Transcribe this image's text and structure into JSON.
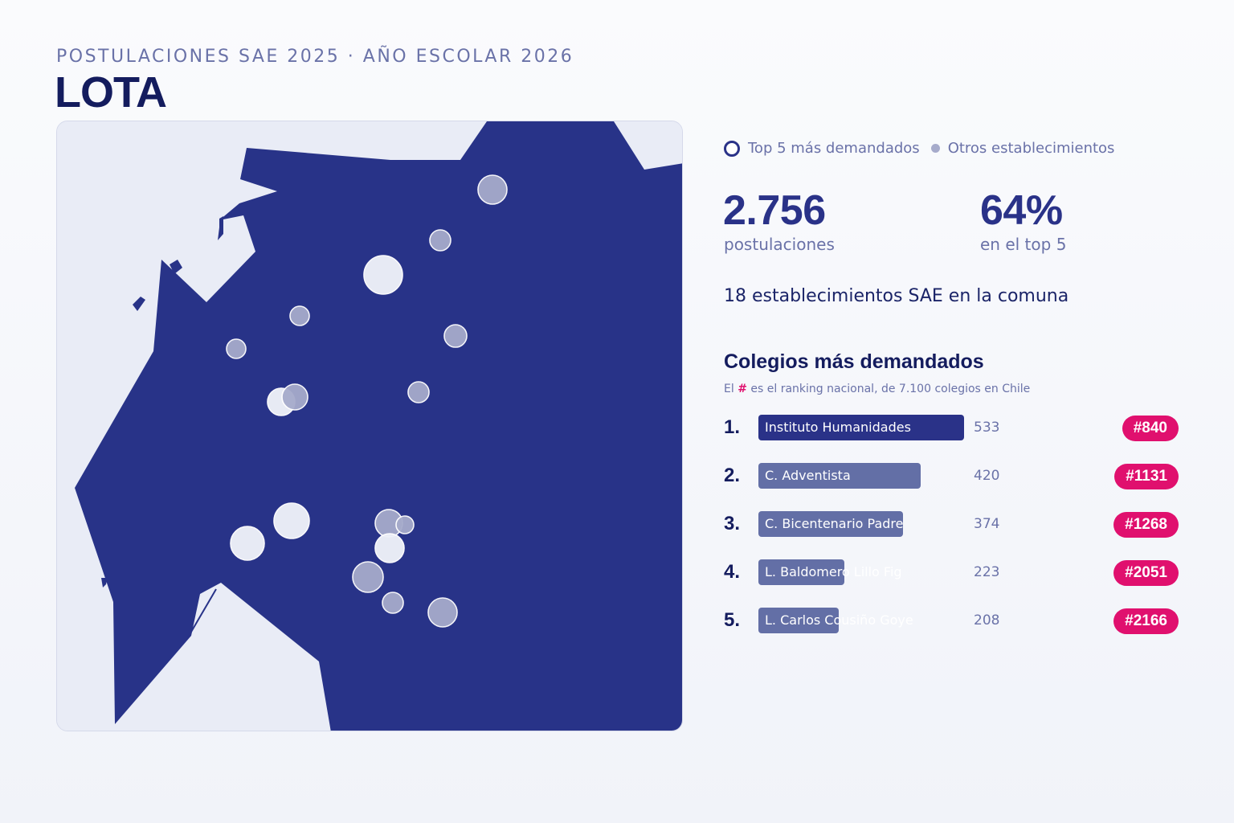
{
  "header": {
    "subtitle": "POSTULACIONES SAE 2025 · AÑO ESCOLAR 2026",
    "title": "LOTA"
  },
  "legend": {
    "top5_label": "Top 5 más demandados",
    "others_label": "Otros establecimientos"
  },
  "stats": {
    "applications_value": "2.756",
    "applications_label": "postulaciones",
    "top5_share_value": "64%",
    "top5_share_label": "en el top 5",
    "establishments_line": "18 establecimientos SAE en la comuna"
  },
  "ranking": {
    "title": "Colegios más demandados",
    "note_prefix": "El",
    "note_hash": "#",
    "note_suffix": "es el ranking nacional, de 7.100 colegios en Chile",
    "max_value": 533,
    "items": [
      {
        "pos": "1.",
        "name": "Instituto Humanidades",
        "value": 533,
        "rank": "#840"
      },
      {
        "pos": "2.",
        "name": "C. Adventista",
        "value": 420,
        "rank": "#1131"
      },
      {
        "pos": "3.",
        "name": "C. Bicentenario Padre",
        "value": 374,
        "rank": "#1268"
      },
      {
        "pos": "4.",
        "name": "L. Baldomero Lillo Fig",
        "value": 223,
        "rank": "#2051"
      },
      {
        "pos": "5.",
        "name": "L. Carlos Cousiño Goye",
        "value": 208,
        "rank": "#2166"
      }
    ]
  },
  "colors": {
    "land": "#283388",
    "water": "#e9ecf6",
    "accent": "#e0106e",
    "top5_marker": "#eef0f8",
    "other_marker": "#a6abcb"
  }
}
